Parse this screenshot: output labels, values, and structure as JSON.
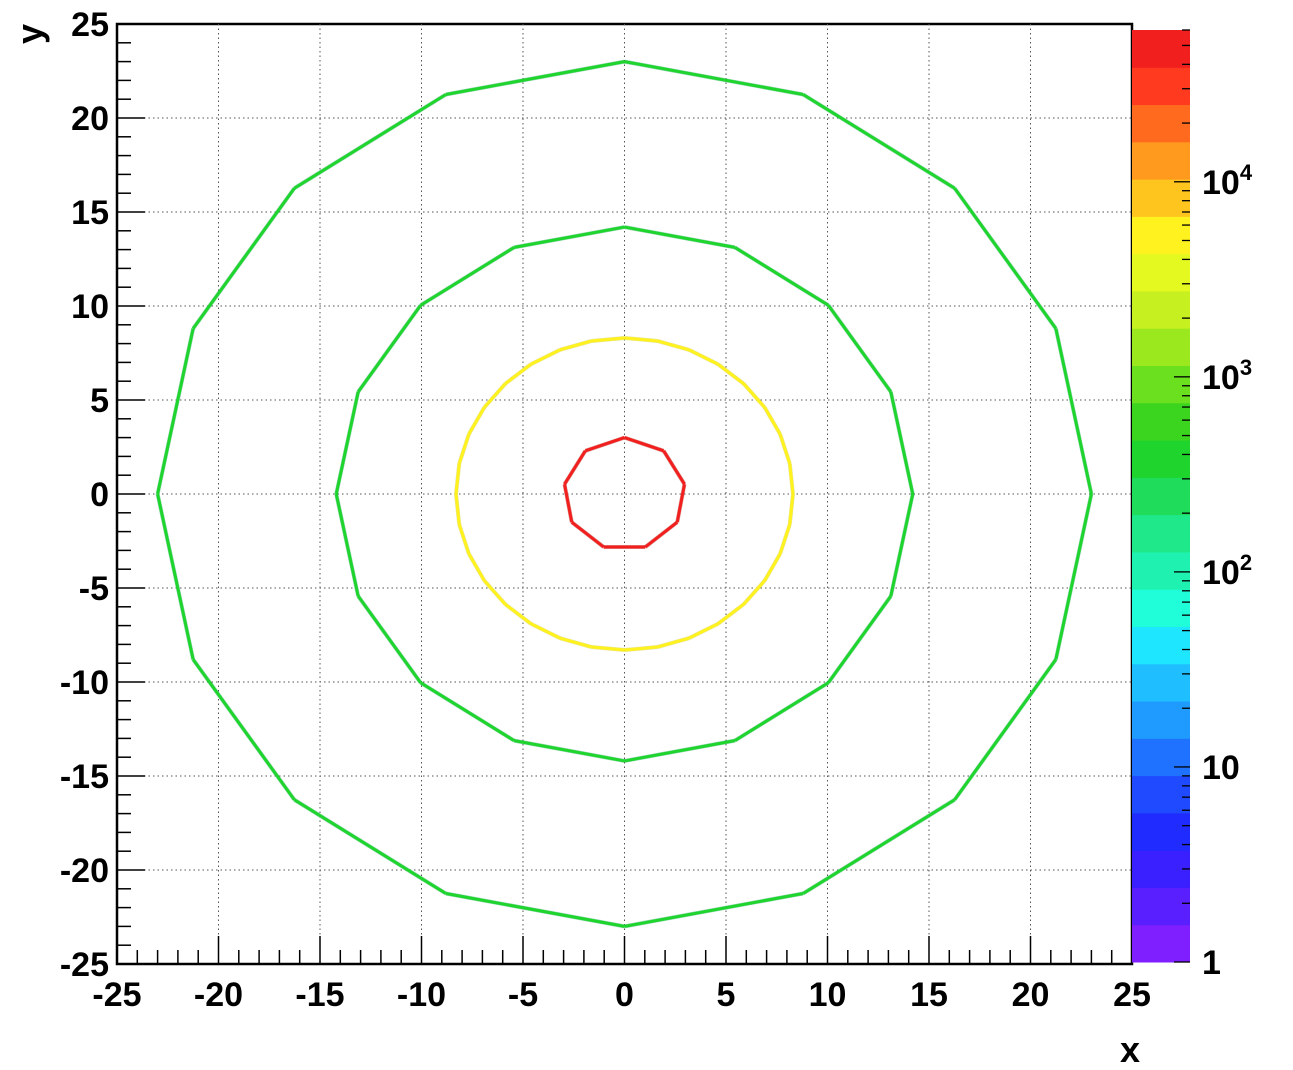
{
  "chart_data": {
    "type": "scatter",
    "subtype": "2D histogram (COL), logarithmic z color scale",
    "xlabel": "x",
    "ylabel": "y",
    "xlim": [
      -25,
      25
    ],
    "ylim": [
      -25,
      25
    ],
    "x_ticks": [
      "-25",
      "-20",
      "-15",
      "-10",
      "-5",
      "0",
      "5",
      "10",
      "15",
      "20",
      "25"
    ],
    "y_ticks": [
      "25",
      "20",
      "15",
      "10",
      "5",
      "0",
      "-5",
      "-10",
      "-15",
      "-20",
      "-25"
    ],
    "grid": true,
    "grid_style": "dotted",
    "colorbar": {
      "scale": "log",
      "zlim": [
        1,
        60000
      ],
      "labels": [
        {
          "base": "1",
          "exp": "",
          "value": 1
        },
        {
          "base": "10",
          "exp": "",
          "value": 10
        },
        {
          "base": "10",
          "exp": "2",
          "value": 100
        },
        {
          "base": "10",
          "exp": "3",
          "value": 1000
        },
        {
          "base": "10",
          "exp": "4",
          "value": 10000
        }
      ],
      "palette": [
        "#7f1fff",
        "#5a1fff",
        "#3a1fff",
        "#1f2bff",
        "#1f4aff",
        "#1f72ff",
        "#1f9aff",
        "#1fbfff",
        "#1fe6ff",
        "#1ffdd9",
        "#1ff2b0",
        "#1fe88a",
        "#1fdd5a",
        "#1fd52d",
        "#3bd41f",
        "#6ae01f",
        "#9ce81f",
        "#c6f01f",
        "#e4f91f",
        "#fff21f",
        "#ffc51f",
        "#ff9a1f",
        "#ff6a1f",
        "#ff3a1f",
        "#f21f1f"
      ]
    },
    "series": [
      {
        "radius": 23.0,
        "segments": 16,
        "z": 400
      },
      {
        "radius": 14.2,
        "segments": 16,
        "z": 400
      },
      {
        "radius": 8.3,
        "segments": 32,
        "z": 5000
      },
      {
        "radius": 3.0,
        "segments": 9,
        "z": 40000
      }
    ]
  }
}
